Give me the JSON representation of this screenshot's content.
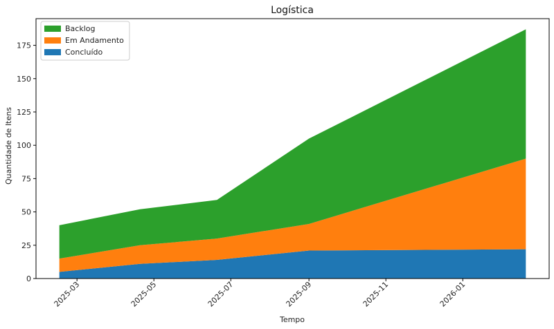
{
  "chart_data": {
    "type": "area",
    "stacked": true,
    "title": "Logística",
    "xlabel": "Tempo",
    "ylabel": "Quantidade de Itens",
    "x": [
      "2025-02-15",
      "2025-04-20",
      "2025-06-20",
      "2025-09-01",
      "2026-02-20"
    ],
    "x_tick_labels": [
      "2025-03",
      "2025-05",
      "2025-07",
      "2025-09",
      "2025-11",
      "2026-01"
    ],
    "ylim": [
      0,
      195
    ],
    "y_ticks": [
      0,
      25,
      50,
      75,
      100,
      125,
      150,
      175
    ],
    "legend_position": "top-left",
    "grid": false,
    "series": [
      {
        "name": "Concluído",
        "color": "#1f77b4",
        "values": [
          5,
          11,
          14,
          21,
          22
        ]
      },
      {
        "name": "Em Andamento",
        "color": "#ff7f0e",
        "values": [
          10,
          14,
          16,
          20,
          68
        ]
      },
      {
        "name": "Backlog",
        "color": "#2ca02c",
        "values": [
          25,
          27,
          29,
          64,
          97
        ]
      }
    ],
    "legend_order": [
      "Backlog",
      "Em Andamento",
      "Concluído"
    ]
  }
}
